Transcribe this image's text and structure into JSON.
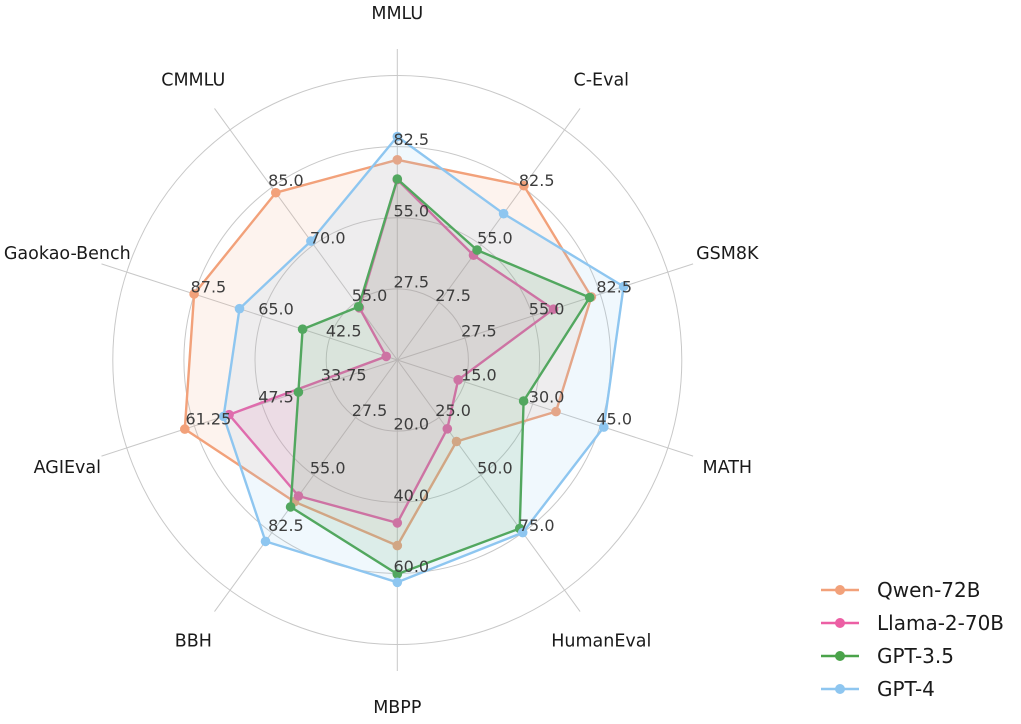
{
  "chart_data": {
    "type": "radar",
    "title": "",
    "grid": true,
    "rings": 4,
    "grid_color": "#c8c8c8",
    "background_color": "#ffffff",
    "tick_label_color": "#3d3d3d",
    "axis_label_color": "#1a1a1a",
    "legend_position": "lower right",
    "axes": [
      {
        "label": "MMLU",
        "range": [
          0,
          110
        ],
        "ticks": [
          27.5,
          55.0,
          82.5
        ],
        "tick_labels": [
          "27.5",
          "55.0",
          "82.5"
        ]
      },
      {
        "label": "C-Eval",
        "range": [
          0,
          110
        ],
        "ticks": [
          27.5,
          55.0,
          82.5
        ],
        "tick_labels": [
          "27.5",
          "55.0",
          "82.5"
        ]
      },
      {
        "label": "GSM8K",
        "range": [
          0,
          110
        ],
        "ticks": [
          27.5,
          55.0,
          82.5
        ],
        "tick_labels": [
          "27.5",
          "55.0",
          "82.5"
        ]
      },
      {
        "label": "MATH",
        "range": [
          0,
          60
        ],
        "ticks": [
          15.0,
          30.0,
          45.0
        ],
        "tick_labels": [
          "15.0",
          "30.0",
          "45.0"
        ]
      },
      {
        "label": "HumanEval",
        "range": [
          0,
          100
        ],
        "ticks": [
          25.0,
          50.0,
          75.0
        ],
        "tick_labels": [
          "25.0",
          "50.0",
          "75.0"
        ]
      },
      {
        "label": "MBPP",
        "range": [
          0,
          80
        ],
        "ticks": [
          20.0,
          40.0,
          60.0
        ],
        "tick_labels": [
          "20.0",
          "40.0",
          "60.0"
        ]
      },
      {
        "label": "BBH",
        "range": [
          0,
          110
        ],
        "ticks": [
          27.5,
          55.0,
          82.5
        ],
        "tick_labels": [
          "27.5",
          "55.0",
          "82.5"
        ]
      },
      {
        "label": "AGIEval",
        "range": [
          20,
          75
        ],
        "ticks": [
          33.75,
          47.5,
          61.25
        ],
        "tick_labels": [
          "33.75",
          "47.5",
          "61.25"
        ]
      },
      {
        "label": "Gaokao-Bench",
        "range": [
          20,
          110
        ],
        "ticks": [
          42.5,
          65.0,
          87.5
        ],
        "tick_labels": [
          "42.5",
          "65.0",
          "87.5"
        ]
      },
      {
        "label": "CMMLU",
        "range": [
          40,
          100
        ],
        "ticks": [
          55.0,
          70.0,
          85.0
        ],
        "tick_labels": [
          "55.0",
          "70.0",
          "85.0"
        ]
      }
    ],
    "series": [
      {
        "name": "Qwen-72B",
        "color": "#f2a17a",
        "values": [
          77.4,
          83.3,
          78.9,
          35.2,
          35.4,
          52.2,
          67.7,
          63.2,
          87.6,
          83.6
        ]
      },
      {
        "name": "Llama-2-70B",
        "color": "#ec5fa4",
        "values": [
          69.7,
          50.1,
          63.5,
          13.5,
          29.9,
          45.8,
          65.0,
          54.2,
          23.7,
          53.6
        ]
      },
      {
        "name": "GPT-3.5",
        "color": "#4aa34a",
        "values": [
          70.0,
          52.5,
          78.2,
          28.0,
          73.2,
          60.2,
          70.2,
          40.1,
          51.5,
          53.9
        ]
      },
      {
        "name": "GPT-4",
        "color": "#8ec6f0",
        "values": [
          86.4,
          69.9,
          92.0,
          45.8,
          75.0,
          62.5,
          86.7,
          55.3,
          72.5,
          71.0
        ]
      }
    ]
  }
}
